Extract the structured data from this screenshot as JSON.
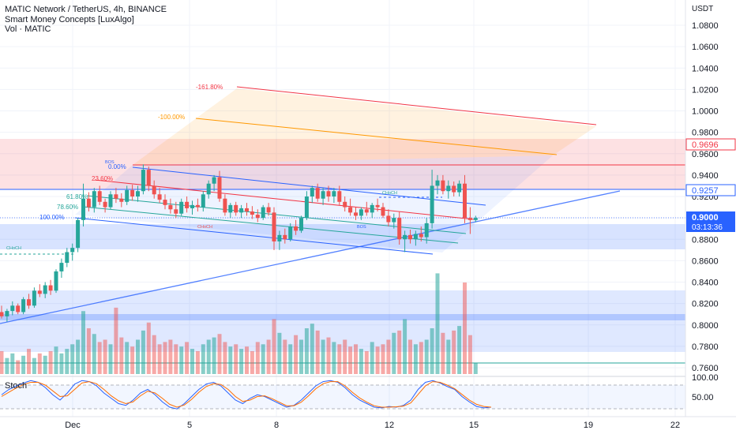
{
  "header": {
    "title_line": "MATIC Network / TetherUS, 4h, BINANCE",
    "indicator_1": "Smart Money Concepts [LuxAlgo]",
    "indicator_2": "Vol · MATIC"
  },
  "colors": {
    "bull": "#26a69a",
    "bear": "#ef5350",
    "grid": "#f0f3fa",
    "blue_line": "#2962ff",
    "orange": "#ff9800",
    "red_line": "#f23645"
  },
  "chart_data": {
    "type": "candlestick",
    "currency_label": "USDT",
    "y_ticks": [
      "1.0800",
      "1.0600",
      "1.0400",
      "1.0200",
      "1.0000",
      "0.9800",
      "0.9600",
      "0.9400",
      "0.9200",
      "0.9000",
      "0.8800",
      "0.8600",
      "0.8400",
      "0.8200",
      "0.8000",
      "0.7800",
      "0.7600"
    ],
    "ylim": [
      0.752,
      1.093
    ],
    "x_ticks": [
      "Dec",
      "5",
      "8",
      "12",
      "15",
      "19",
      "22"
    ],
    "price_badges": [
      {
        "label": "0.9696",
        "value": 0.9696,
        "style": "outline-red"
      },
      {
        "label": "0.9257",
        "value": 0.9257,
        "style": "outline-blue"
      },
      {
        "label": "0.9000",
        "value": 0.9,
        "style": "current"
      },
      {
        "label": "03:13:36",
        "style": "countdown"
      }
    ],
    "fib_labels": [
      "-161.80%",
      "-100.00%",
      "0.00%",
      "23.60%",
      "61.80%",
      "78.60%",
      "100.00%"
    ],
    "structure_labels": [
      "BOS",
      "CHoCH",
      "CHoCH",
      "CHoCH",
      "BOS"
    ],
    "candles_ohlc": [
      [
        0.812,
        0.818,
        0.806,
        0.808
      ],
      [
        0.808,
        0.815,
        0.803,
        0.813
      ],
      [
        0.813,
        0.822,
        0.809,
        0.818
      ],
      [
        0.818,
        0.82,
        0.81,
        0.812
      ],
      [
        0.812,
        0.826,
        0.81,
        0.824
      ],
      [
        0.824,
        0.829,
        0.815,
        0.818
      ],
      [
        0.818,
        0.835,
        0.816,
        0.832
      ],
      [
        0.832,
        0.838,
        0.826,
        0.829
      ],
      [
        0.829,
        0.84,
        0.825,
        0.837
      ],
      [
        0.837,
        0.842,
        0.828,
        0.832
      ],
      [
        0.832,
        0.852,
        0.83,
        0.85
      ],
      [
        0.85,
        0.862,
        0.844,
        0.858
      ],
      [
        0.858,
        0.872,
        0.854,
        0.868
      ],
      [
        0.868,
        0.876,
        0.86,
        0.872
      ],
      [
        0.872,
        0.9,
        0.868,
        0.898
      ],
      [
        0.898,
        0.932,
        0.892,
        0.918
      ],
      [
        0.918,
        0.924,
        0.906,
        0.91
      ],
      [
        0.91,
        0.928,
        0.905,
        0.925
      ],
      [
        0.925,
        0.93,
        0.912,
        0.915
      ],
      [
        0.915,
        0.918,
        0.905,
        0.91
      ],
      [
        0.91,
        0.925,
        0.908,
        0.922
      ],
      [
        0.922,
        0.928,
        0.914,
        0.918
      ],
      [
        0.918,
        0.923,
        0.91,
        0.915
      ],
      [
        0.915,
        0.93,
        0.912,
        0.926
      ],
      [
        0.926,
        0.931,
        0.916,
        0.92
      ],
      [
        0.92,
        0.93,
        0.915,
        0.925
      ],
      [
        0.925,
        0.95,
        0.922,
        0.945
      ],
      [
        0.945,
        0.948,
        0.925,
        0.93
      ],
      [
        0.93,
        0.935,
        0.918,
        0.922
      ],
      [
        0.922,
        0.928,
        0.914,
        0.917
      ],
      [
        0.917,
        0.922,
        0.908,
        0.912
      ],
      [
        0.912,
        0.918,
        0.904,
        0.908
      ],
      [
        0.908,
        0.915,
        0.9,
        0.904
      ],
      [
        0.904,
        0.918,
        0.902,
        0.915
      ],
      [
        0.915,
        0.92,
        0.905,
        0.909
      ],
      [
        0.909,
        0.916,
        0.903,
        0.912
      ],
      [
        0.912,
        0.918,
        0.906,
        0.91
      ],
      [
        0.91,
        0.925,
        0.906,
        0.922
      ],
      [
        0.922,
        0.935,
        0.918,
        0.932
      ],
      [
        0.932,
        0.94,
        0.925,
        0.938
      ],
      [
        0.938,
        0.944,
        0.915,
        0.918
      ],
      [
        0.918,
        0.922,
        0.902,
        0.905
      ],
      [
        0.905,
        0.914,
        0.9,
        0.912
      ],
      [
        0.912,
        0.915,
        0.902,
        0.905
      ],
      [
        0.905,
        0.912,
        0.9,
        0.909
      ],
      [
        0.909,
        0.914,
        0.902,
        0.906
      ],
      [
        0.906,
        0.911,
        0.899,
        0.903
      ],
      [
        0.903,
        0.908,
        0.896,
        0.9
      ],
      [
        0.9,
        0.912,
        0.898,
        0.91
      ],
      [
        0.91,
        0.914,
        0.902,
        0.905
      ],
      [
        0.905,
        0.91,
        0.87,
        0.878
      ],
      [
        0.878,
        0.888,
        0.87,
        0.884
      ],
      [
        0.884,
        0.89,
        0.876,
        0.88
      ],
      [
        0.88,
        0.895,
        0.878,
        0.892
      ],
      [
        0.892,
        0.898,
        0.884,
        0.888
      ],
      [
        0.888,
        0.902,
        0.886,
        0.9
      ],
      [
        0.9,
        0.925,
        0.898,
        0.92
      ],
      [
        0.92,
        0.93,
        0.914,
        0.928
      ],
      [
        0.928,
        0.932,
        0.915,
        0.918
      ],
      [
        0.918,
        0.928,
        0.912,
        0.925
      ],
      [
        0.925,
        0.93,
        0.915,
        0.92
      ],
      [
        0.92,
        0.928,
        0.914,
        0.925
      ],
      [
        0.925,
        0.93,
        0.912,
        0.915
      ],
      [
        0.915,
        0.92,
        0.906,
        0.91
      ],
      [
        0.91,
        0.918,
        0.902,
        0.905
      ],
      [
        0.905,
        0.91,
        0.898,
        0.902
      ],
      [
        0.902,
        0.91,
        0.898,
        0.908
      ],
      [
        0.908,
        0.915,
        0.902,
        0.905
      ],
      [
        0.905,
        0.914,
        0.9,
        0.912
      ],
      [
        0.912,
        0.918,
        0.906,
        0.91
      ],
      [
        0.91,
        0.914,
        0.9,
        0.902
      ],
      [
        0.902,
        0.908,
        0.892,
        0.896
      ],
      [
        0.896,
        0.904,
        0.89,
        0.9
      ],
      [
        0.9,
        0.906,
        0.875,
        0.88
      ],
      [
        0.88,
        0.888,
        0.868,
        0.884
      ],
      [
        0.884,
        0.889,
        0.876,
        0.88
      ],
      [
        0.88,
        0.888,
        0.874,
        0.885
      ],
      [
        0.885,
        0.892,
        0.878,
        0.882
      ],
      [
        0.882,
        0.9,
        0.876,
        0.895
      ],
      [
        0.895,
        0.945,
        0.89,
        0.93
      ],
      [
        0.93,
        0.94,
        0.922,
        0.935
      ],
      [
        0.935,
        0.94,
        0.922,
        0.925
      ],
      [
        0.925,
        0.935,
        0.918,
        0.93
      ],
      [
        0.93,
        0.934,
        0.92,
        0.924
      ],
      [
        0.924,
        0.935,
        0.92,
        0.932
      ],
      [
        0.932,
        0.94,
        0.895,
        0.9
      ],
      [
        0.9,
        0.91,
        0.885,
        0.898
      ],
      [
        0.898,
        0.902,
        0.896,
        0.9
      ]
    ],
    "volume": [
      20,
      14,
      18,
      12,
      16,
      22,
      14,
      18,
      16,
      20,
      24,
      18,
      22,
      26,
      30,
      55,
      40,
      35,
      28,
      30,
      26,
      58,
      32,
      28,
      24,
      30,
      38,
      45,
      34,
      26,
      28,
      30,
      26,
      24,
      28,
      22,
      20,
      26,
      30,
      32,
      35,
      28,
      24,
      26,
      22,
      24,
      20,
      28,
      26,
      30,
      48,
      36,
      30,
      26,
      34,
      30,
      40,
      44,
      38,
      30,
      32,
      28,
      26,
      30,
      24,
      26,
      22,
      20,
      28,
      24,
      26,
      30,
      36,
      38,
      48,
      30,
      26,
      28,
      30,
      40,
      88,
      36,
      30,
      38,
      42,
      80,
      34,
      10
    ],
    "volume_colors": "by candle direction",
    "stoch_axis": [
      "100.00",
      "50.00"
    ],
    "stoch_k": [
      55,
      70,
      80,
      88,
      95,
      90,
      75,
      55,
      40,
      60,
      85,
      95,
      92,
      80,
      60,
      45,
      30,
      25,
      40,
      60,
      70,
      55,
      35,
      20,
      15,
      30,
      50,
      70,
      85,
      90,
      80,
      60,
      40,
      30,
      45,
      55,
      50,
      40,
      30,
      20,
      25,
      40,
      60,
      80,
      92,
      95,
      90,
      75,
      55,
      40,
      30,
      20,
      18,
      22,
      20,
      25,
      40,
      70,
      90,
      95,
      88,
      78,
      70,
      50,
      35,
      22,
      18,
      20
    ],
    "stoch_d": [
      50,
      62,
      74,
      84,
      90,
      90,
      82,
      66,
      50,
      52,
      70,
      88,
      92,
      86,
      70,
      52,
      38,
      30,
      35,
      52,
      65,
      60,
      45,
      28,
      20,
      26,
      42,
      62,
      78,
      86,
      84,
      70,
      50,
      36,
      40,
      50,
      52,
      44,
      34,
      24,
      24,
      34,
      52,
      72,
      86,
      92,
      92,
      80,
      62,
      46,
      34,
      24,
      20,
      20,
      21,
      23,
      32,
      56,
      80,
      92,
      90,
      82,
      72,
      56,
      40,
      28,
      22,
      20
    ]
  }
}
